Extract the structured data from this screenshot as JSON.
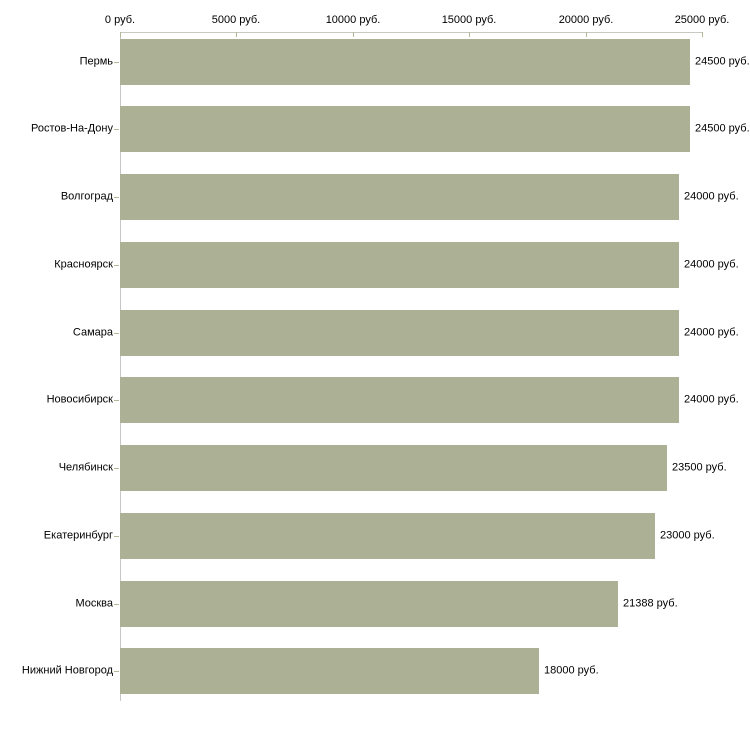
{
  "chart_data": {
    "type": "bar",
    "orientation": "horizontal",
    "title": "",
    "xlabel": "",
    "ylabel": "",
    "xlim": [
      0,
      25000
    ],
    "grid": false,
    "legend": false,
    "categories": [
      "Пермь",
      "Ростов-На-Дону",
      "Волгоград",
      "Красноярск",
      "Самара",
      "Новосибирск",
      "Челябинск",
      "Екатеринбург",
      "Москва",
      "Нижний Новгород"
    ],
    "values": [
      24500,
      24500,
      24000,
      24000,
      24000,
      24000,
      23500,
      23000,
      21388,
      18000
    ],
    "labels": [
      "24500 руб.",
      "24500 руб.",
      "24000 руб.",
      "24000 руб.",
      "24000 руб.",
      "24000 руб.",
      "23500 руб.",
      "23000 руб.",
      "21388 руб.",
      "18000 руб."
    ],
    "x_ticks": [
      {
        "value": 0,
        "label": "0 руб."
      },
      {
        "value": 5000,
        "label": "5000 руб."
      },
      {
        "value": 10000,
        "label": "10000 руб."
      },
      {
        "value": 15000,
        "label": "15000 руб."
      },
      {
        "value": 20000,
        "label": "20000 руб."
      },
      {
        "value": 25000,
        "label": "25000 руб."
      }
    ],
    "colors": {
      "bar": "#acb196",
      "axis_line": "#c9c9c1",
      "tick": "#b3b795",
      "category_axis_line": "#c6c6c6",
      "text": "#000000",
      "background": "#ffffff"
    }
  }
}
